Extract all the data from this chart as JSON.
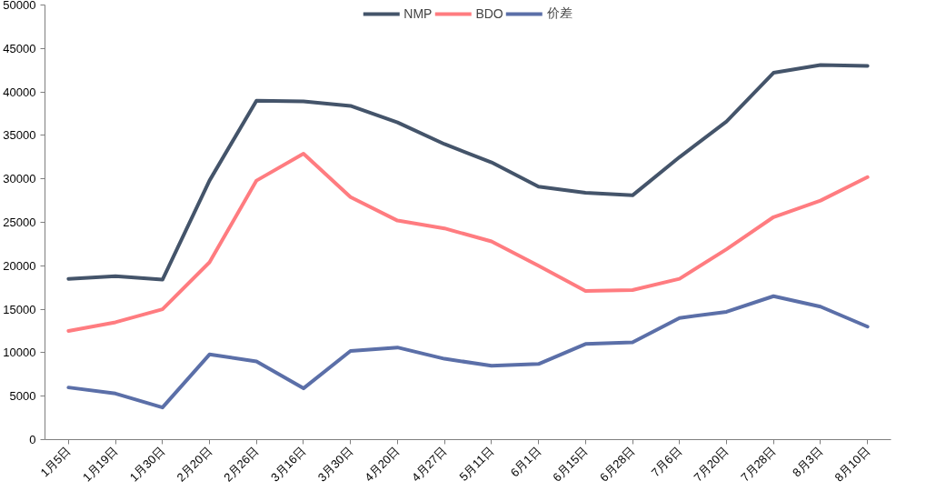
{
  "chart_data": {
    "type": "line",
    "categories": [
      "1月5日",
      "1月19日",
      "1月30日",
      "2月20日",
      "2月26日",
      "3月16日",
      "3月30日",
      "4月20日",
      "4月27日",
      "5月11日",
      "6月1日",
      "6月15日",
      "6月28日",
      "7月6日",
      "7月20日",
      "7月28日",
      "8月3日",
      "8月10日"
    ],
    "series": [
      {
        "name": "NMP",
        "color": "#44546a",
        "values": [
          18500,
          18800,
          18400,
          29800,
          39000,
          38900,
          38400,
          36500,
          34000,
          31900,
          29100,
          28400,
          28100,
          32500,
          36600,
          42200,
          43100,
          43000
        ]
      },
      {
        "name": "BDO",
        "color": "#ff7c80",
        "values": [
          12500,
          13500,
          15000,
          20400,
          29800,
          32900,
          27900,
          25200,
          24300,
          22800,
          20000,
          17100,
          17200,
          18500,
          21900,
          25600,
          27500,
          30200
        ]
      },
      {
        "name": "价差",
        "color": "#5b6fa8",
        "values": [
          6000,
          5300,
          3700,
          9800,
          9000,
          5900,
          10200,
          10600,
          9300,
          8500,
          8700,
          11000,
          11200,
          14000,
          14700,
          16500,
          15300,
          13000
        ]
      }
    ],
    "ylim": [
      0,
      50000
    ],
    "yticks": [
      0,
      5000,
      10000,
      15000,
      20000,
      25000,
      30000,
      35000,
      40000,
      45000,
      50000
    ],
    "grid": false,
    "legend": "top",
    "marker": "none",
    "line_style": "solid"
  }
}
